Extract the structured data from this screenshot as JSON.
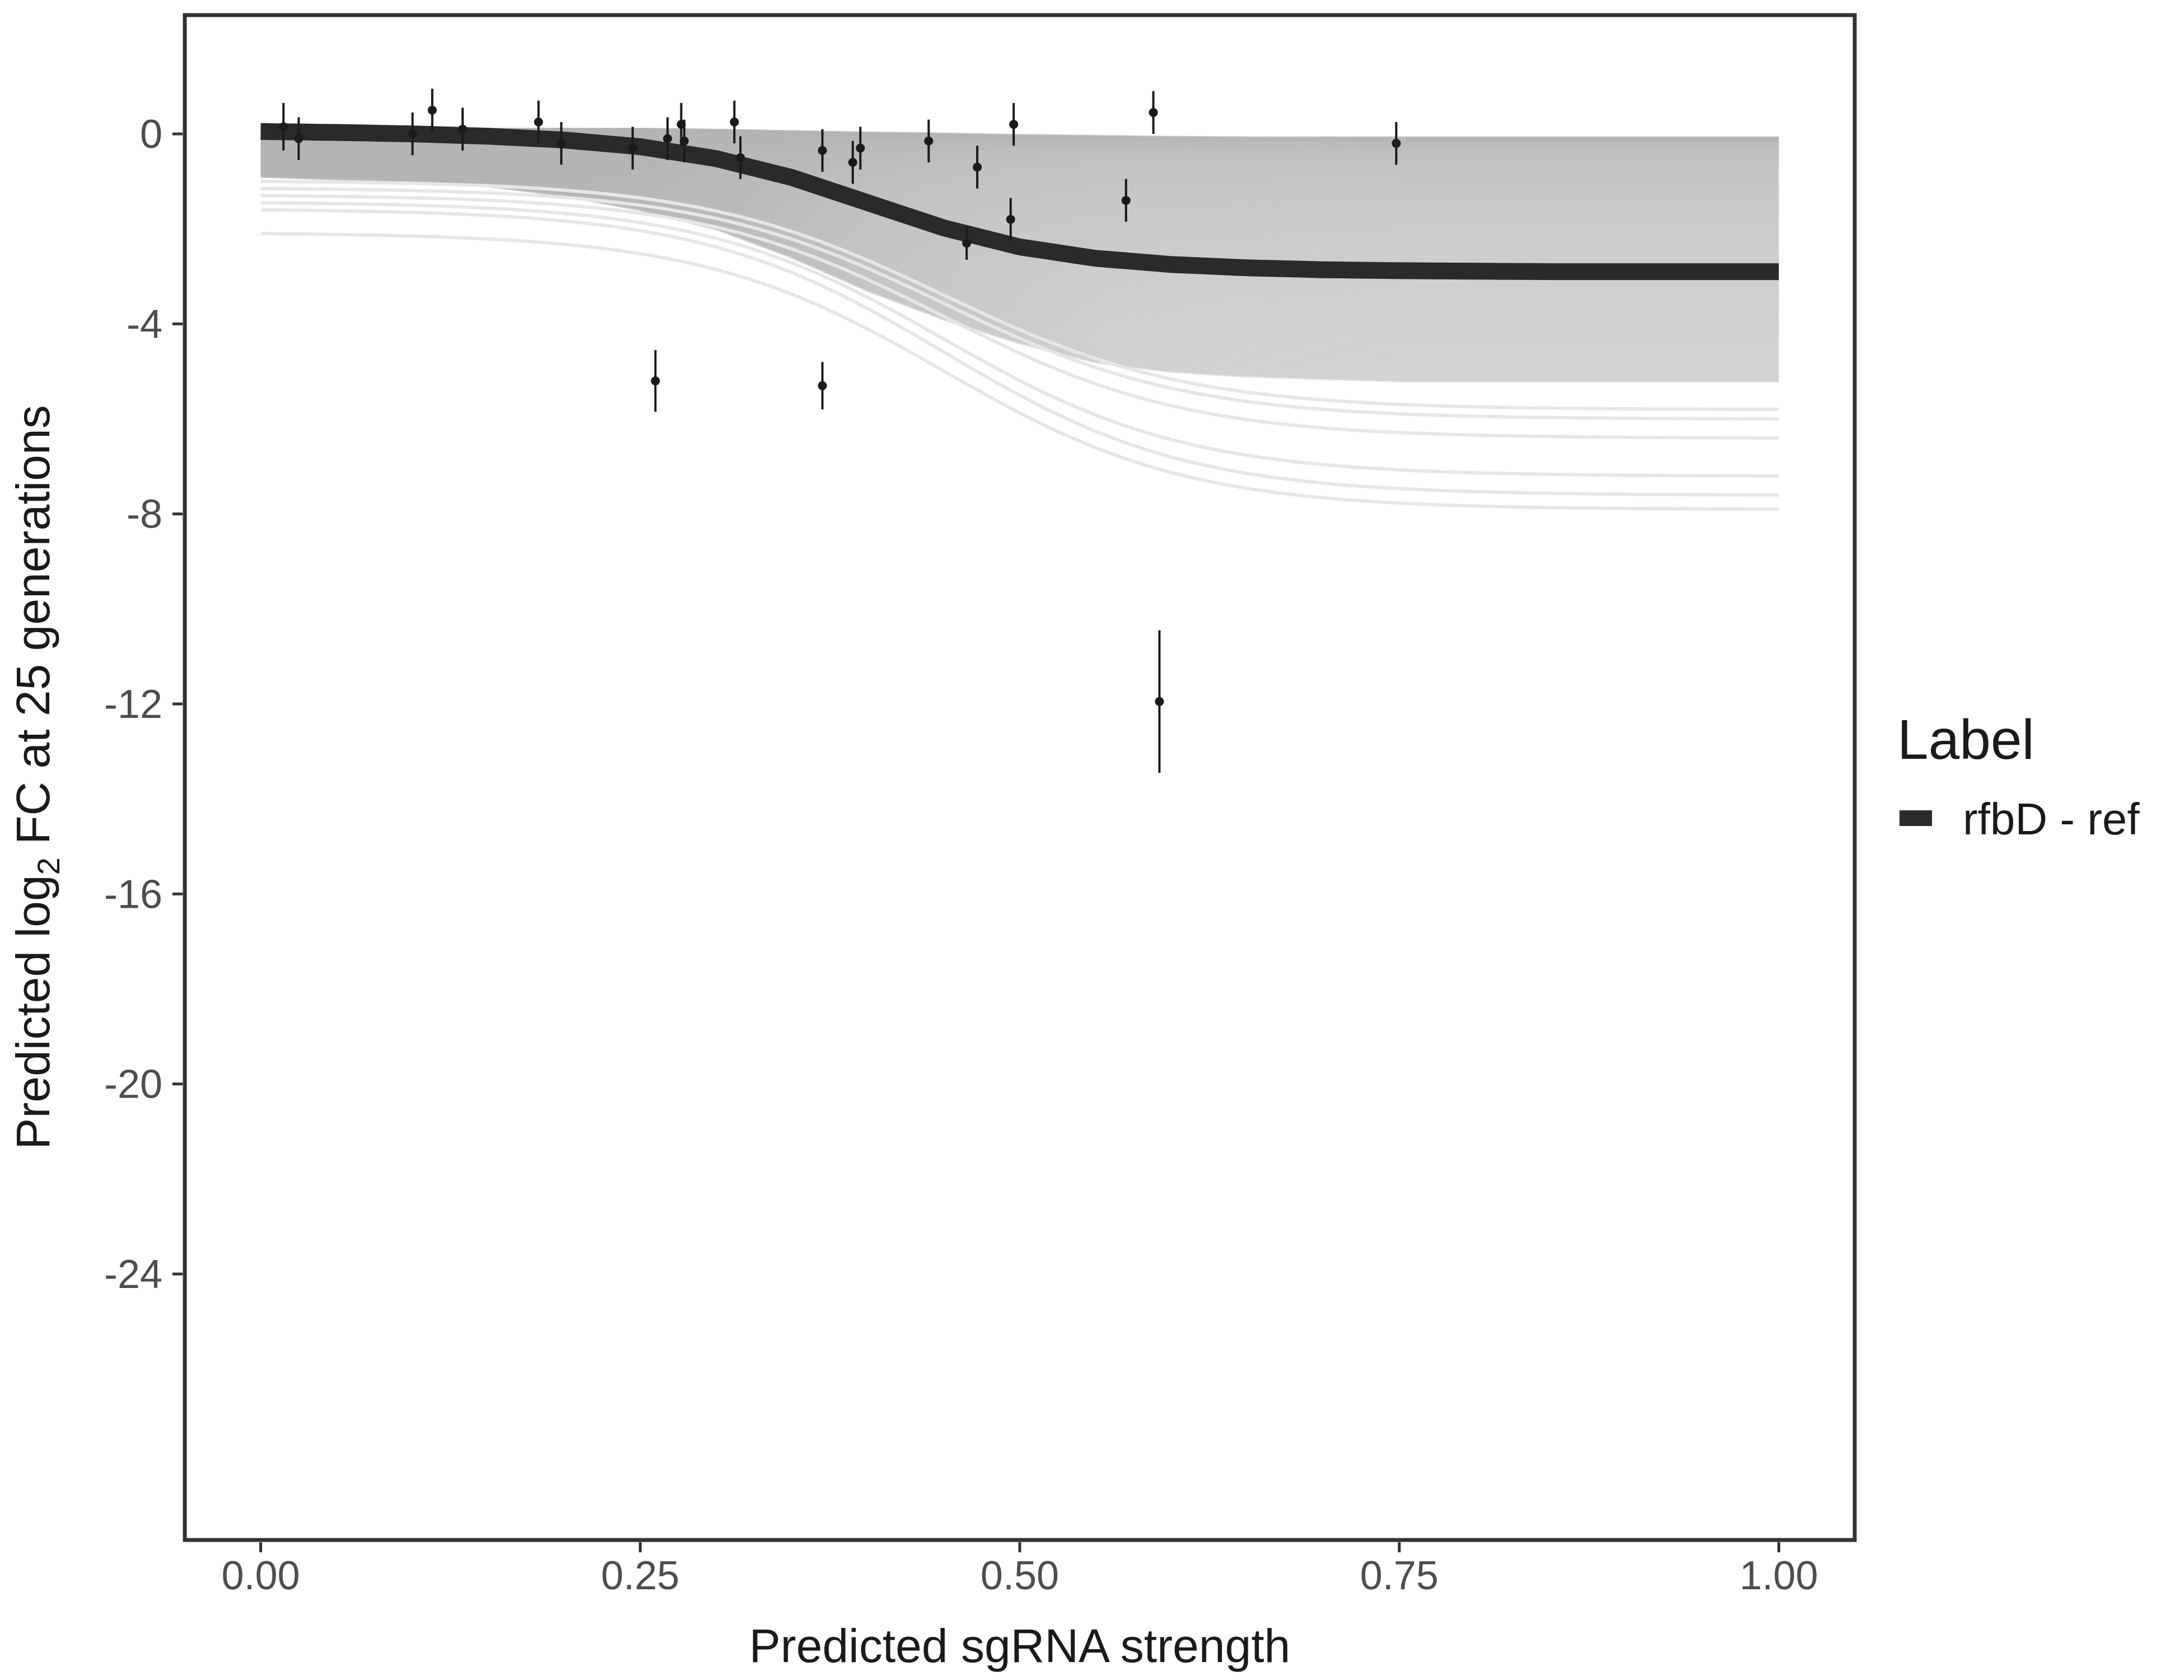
{
  "chart_data": {
    "type": "line",
    "xlabel": "Predicted sgRNA strength",
    "ylabel_prefix": "Predicted  log",
    "ylabel_sub": "2",
    "ylabel_suffix": " FC at 25 generations",
    "xlim": [
      -0.05,
      1.05
    ],
    "ylim": [
      -29.6,
      2.5
    ],
    "x_ticks": [
      0,
      0.25,
      0.5,
      0.75,
      1
    ],
    "x_tick_labels": [
      "0.00",
      "0.25",
      "0.50",
      "0.75",
      "1.00"
    ],
    "y_ticks": [
      0,
      -4,
      -8,
      -12,
      -16,
      -20,
      -24
    ],
    "y_tick_labels": [
      "0",
      "-4",
      "-8",
      "-12",
      "-16",
      "-20",
      "-24"
    ],
    "grid": false,
    "legend": {
      "title": "Label",
      "position": "right",
      "entries": [
        "rfbD - ref"
      ]
    },
    "colors": {
      "fit": "#2a2a2a",
      "samples": "#b3b3b3",
      "points": "#1a1a1a",
      "frame": "#333333"
    },
    "series": [
      {
        "name": "rfbD - ref",
        "style": "thick-line",
        "x": [
          0,
          0.05,
          0.1,
          0.15,
          0.2,
          0.25,
          0.3,
          0.35,
          0.4,
          0.45,
          0.5,
          0.55,
          0.6,
          0.65,
          0.7,
          0.75,
          0.8,
          0.85,
          0.9,
          0.95,
          1
        ],
        "y": [
          0.05,
          0.03,
          0.0,
          -0.05,
          -0.13,
          -0.27,
          -0.52,
          -0.92,
          -1.45,
          -1.98,
          -2.38,
          -2.62,
          -2.75,
          -2.82,
          -2.86,
          -2.88,
          -2.89,
          -2.9,
          -2.9,
          -2.9,
          -2.9
        ]
      }
    ],
    "posterior_band": {
      "x": [
        0,
        0.05,
        0.1,
        0.15,
        0.2,
        0.25,
        0.3,
        0.35,
        0.4,
        0.45,
        0.5,
        0.55,
        0.6,
        0.65,
        0.7,
        0.75,
        0.8,
        0.85,
        0.9,
        0.95,
        1
      ],
      "upper": [
        0.1,
        0.1,
        0.1,
        0.1,
        0.1,
        0.1,
        0.08,
        0.05,
        0.02,
        0.0,
        -0.03,
        -0.05,
        -0.07,
        -0.08,
        -0.08,
        -0.08,
        -0.08,
        -0.08,
        -0.08,
        -0.08,
        -0.08
      ],
      "lower": [
        -0.9,
        -0.95,
        -1.0,
        -1.1,
        -1.3,
        -1.6,
        -2.0,
        -2.6,
        -3.3,
        -3.9,
        -4.4,
        -4.8,
        -5.0,
        -5.1,
        -5.15,
        -5.2,
        -5.2,
        -5.2,
        -5.2,
        -5.2,
        -5.2
      ],
      "outlier_curves": [
        {
          "y0": -2.1,
          "y1": -7.9
        },
        {
          "y0": -1.6,
          "y1": -7.6
        },
        {
          "y0": -1.45,
          "y1": -7.2
        },
        {
          "y0": -1.3,
          "y1": -6.4
        },
        {
          "y0": -1.15,
          "y1": -6.0
        },
        {
          "y0": -1.0,
          "y1": -5.8
        }
      ]
    },
    "points": [
      {
        "x": 0.015,
        "y": 0.15,
        "err": 0.5
      },
      {
        "x": 0.025,
        "y": -0.1,
        "err": 0.45
      },
      {
        "x": 0.1,
        "y": 0.0,
        "err": 0.45
      },
      {
        "x": 0.113,
        "y": 0.5,
        "err": 0.45
      },
      {
        "x": 0.133,
        "y": 0.1,
        "err": 0.45
      },
      {
        "x": 0.183,
        "y": 0.25,
        "err": 0.45
      },
      {
        "x": 0.198,
        "y": -0.2,
        "err": 0.45
      },
      {
        "x": 0.245,
        "y": -0.3,
        "err": 0.45
      },
      {
        "x": 0.26,
        "y": -5.2,
        "err": 0.65
      },
      {
        "x": 0.268,
        "y": -0.1,
        "err": 0.45
      },
      {
        "x": 0.277,
        "y": 0.2,
        "err": 0.45
      },
      {
        "x": 0.279,
        "y": -0.15,
        "err": 0.45
      },
      {
        "x": 0.312,
        "y": 0.25,
        "err": 0.45
      },
      {
        "x": 0.316,
        "y": -0.5,
        "err": 0.45
      },
      {
        "x": 0.37,
        "y": -0.35,
        "err": 0.45
      },
      {
        "x": 0.37,
        "y": -5.3,
        "err": 0.5
      },
      {
        "x": 0.39,
        "y": -0.6,
        "err": 0.45
      },
      {
        "x": 0.395,
        "y": -0.3,
        "err": 0.45
      },
      {
        "x": 0.44,
        "y": -0.15,
        "err": 0.45
      },
      {
        "x": 0.465,
        "y": -2.3,
        "err": 0.35
      },
      {
        "x": 0.472,
        "y": -0.7,
        "err": 0.45
      },
      {
        "x": 0.494,
        "y": -1.8,
        "err": 0.45
      },
      {
        "x": 0.496,
        "y": 0.2,
        "err": 0.45
      },
      {
        "x": 0.57,
        "y": -1.4,
        "err": 0.45
      },
      {
        "x": 0.588,
        "y": 0.45,
        "err": 0.45
      },
      {
        "x": 0.592,
        "y": -11.95,
        "err": 1.5
      },
      {
        "x": 0.748,
        "y": -0.2,
        "err": 0.45
      }
    ]
  }
}
